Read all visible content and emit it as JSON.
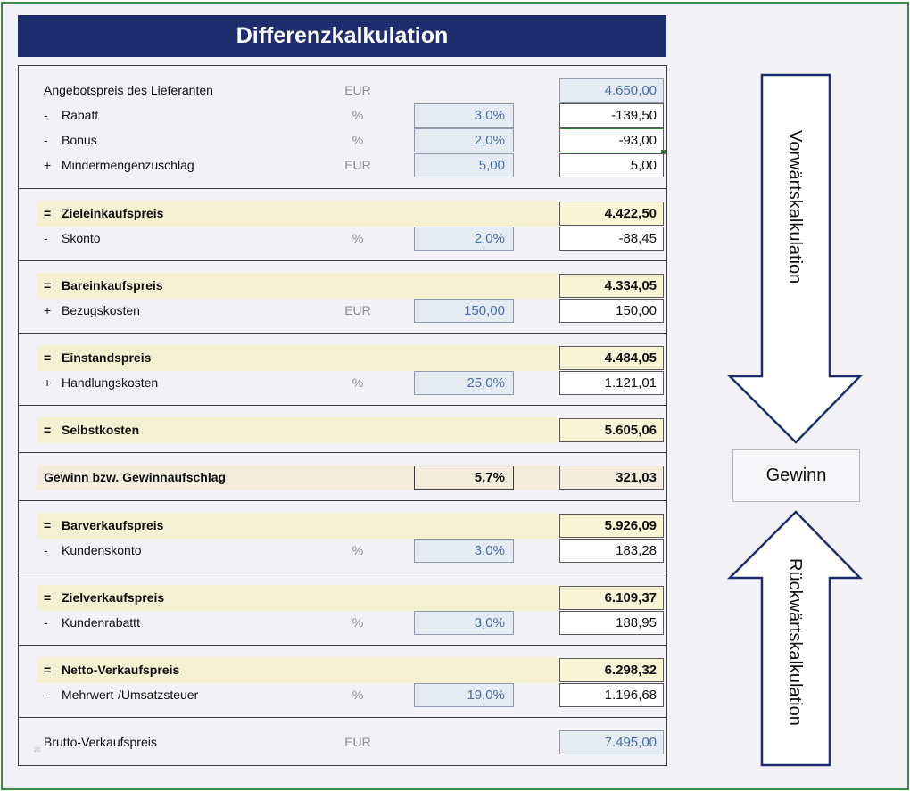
{
  "title": "Differenzkalkulation",
  "rows": [
    {
      "sign": "",
      "label": "Angebotspreis des Lieferanten",
      "unit": "EUR",
      "rate": "",
      "value": "4.650,00"
    },
    {
      "sign": "-",
      "label": "Rabatt",
      "unit": "%",
      "rate": "3,0%",
      "value": "-139,50"
    },
    {
      "sign": "-",
      "label": "Bonus",
      "unit": "%",
      "rate": "2,0%",
      "value": "-93,00"
    },
    {
      "sign": "+",
      "label": "Mindermengenzuschlag",
      "unit": "EUR",
      "rate": "5,00",
      "value": "5,00"
    },
    {
      "sign": "=",
      "label": "Zieleinkaufspreis",
      "unit": "",
      "rate": "",
      "value": "4.422,50"
    },
    {
      "sign": "-",
      "label": "Skonto",
      "unit": "%",
      "rate": "2,0%",
      "value": "-88,45"
    },
    {
      "sign": "=",
      "label": "Bareinkaufspreis",
      "unit": "",
      "rate": "",
      "value": "4.334,05"
    },
    {
      "sign": "+",
      "label": "Bezugskosten",
      "unit": "EUR",
      "rate": "150,00",
      "value": "150,00"
    },
    {
      "sign": "=",
      "label": "Einstandspreis",
      "unit": "",
      "rate": "",
      "value": "4.484,05"
    },
    {
      "sign": "+",
      "label": "Handlungskosten",
      "unit": "%",
      "rate": "25,0%",
      "value": "1.121,01"
    },
    {
      "sign": "=",
      "label": "Selbstkosten",
      "unit": "",
      "rate": "",
      "value": "5.605,06"
    },
    {
      "sign": "",
      "label": "Gewinn bzw. Gewinnaufschlag",
      "unit": "",
      "rate": "5,7%",
      "value": "321,03"
    },
    {
      "sign": "=",
      "label": "Barverkaufspreis",
      "unit": "",
      "rate": "",
      "value": "5.926,09"
    },
    {
      "sign": "-",
      "label": "Kundenskonto",
      "unit": "%",
      "rate": "3,0%",
      "value": "183,28"
    },
    {
      "sign": "=",
      "label": "Zielverkaufspreis",
      "unit": "",
      "rate": "",
      "value": "6.109,37"
    },
    {
      "sign": "-",
      "label": "Kundenrabattt",
      "unit": "%",
      "rate": "3,0%",
      "value": "188,95"
    },
    {
      "sign": "=",
      "label": "Netto-Verkaufspreis",
      "unit": "",
      "rate": "",
      "value": "6.298,32"
    },
    {
      "sign": "-",
      "label": "Mehrwert-/Umsatzsteuer",
      "unit": "%",
      "rate": "19,0%",
      "value": "1.196,68"
    },
    {
      "sign": "",
      "label": "Brutto-Verkaufspreis",
      "unit": "EUR",
      "rate": "",
      "value": "7.495,00"
    }
  ],
  "tiny_mark": "20",
  "side": {
    "forward_label": "Vorwärtskalkulation",
    "backward_label": "Rückwärtskalkulation",
    "center_label": "Gewinn"
  },
  "colors": {
    "title_bg": "#1f2d6e",
    "input_blue": "#4a6ea8",
    "highlight_yellow": "#f4f1d3",
    "highlight_warm": "#f4ecdc",
    "selection_green": "#2e7d3c"
  }
}
